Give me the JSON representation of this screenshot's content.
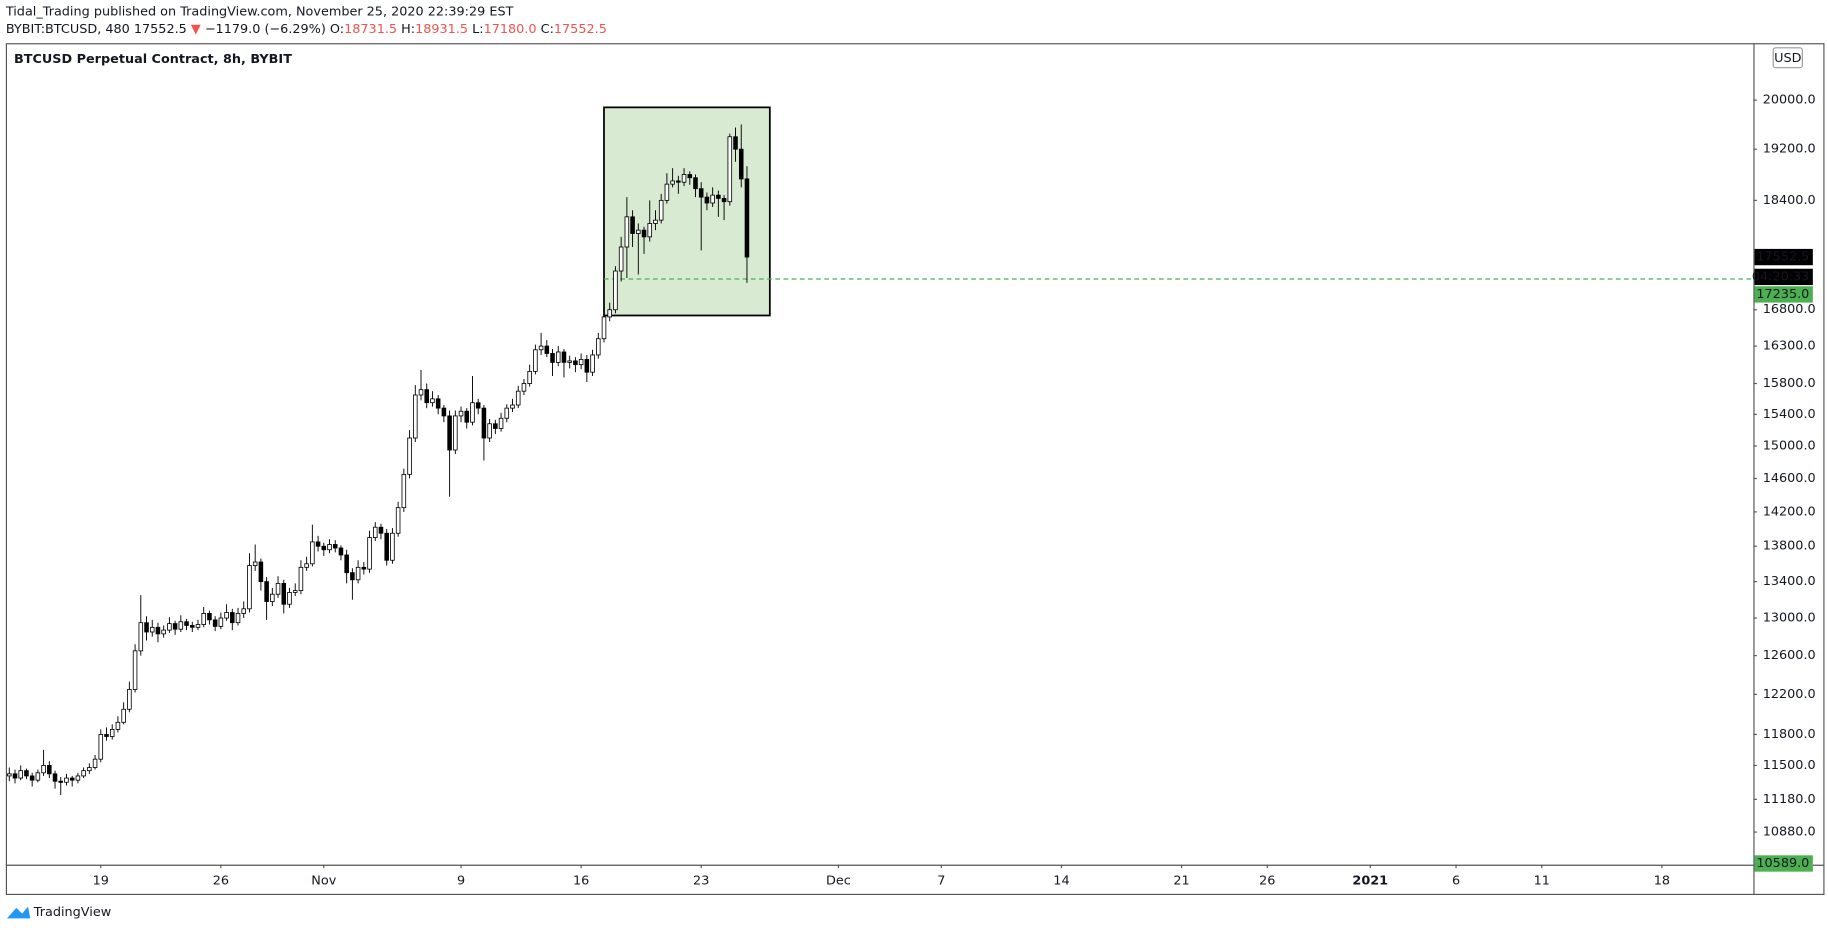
{
  "header": {
    "author": "Tidal_Trading",
    "published": "published on TradingView.com, November 25, 2020 22:39:29 EST",
    "symbol": "BYBIT:BTCUSD, 480",
    "last": "17552.5",
    "change": "−1179.0 (−6.29%)",
    "ohlc_labels": [
      "O:",
      "H:",
      "L:",
      "C:"
    ],
    "ohlc_values": [
      "18731.5",
      "18931.5",
      "17180.0",
      "17552.5"
    ]
  },
  "footer": {
    "brand": "TradingView"
  },
  "currency": "USD",
  "chart_data": {
    "type": "candlestick",
    "title": "BTCUSD Perpetual Contract, 8h, BYBIT",
    "log_scale": true,
    "grid": false,
    "up_color": "#ffffff",
    "down_color": "#000000",
    "wick_color": "#000000",
    "xlim": [
      -0.4,
      305
    ],
    "xticks": [
      {
        "value": 16,
        "label": "19"
      },
      {
        "value": 37,
        "label": "26"
      },
      {
        "value": 55,
        "label": "Nov"
      },
      {
        "value": 79,
        "label": "9"
      },
      {
        "value": 100,
        "label": "16"
      },
      {
        "value": 121,
        "label": "23"
      },
      {
        "value": 145,
        "label": "Dec"
      },
      {
        "value": 163,
        "label": "7"
      },
      {
        "value": 184,
        "label": "14"
      },
      {
        "value": 205,
        "label": "21"
      },
      {
        "value": 220,
        "label": "26"
      },
      {
        "value": 238,
        "label": "2021"
      },
      {
        "value": 253,
        "label": "6"
      },
      {
        "value": 268,
        "label": "11"
      },
      {
        "value": 289,
        "label": "18"
      }
    ],
    "ylim": [
      10589,
      20950
    ],
    "yticks": [
      {
        "value": 20000,
        "label": "20000.0"
      },
      {
        "value": 19200,
        "label": "19200.0"
      },
      {
        "value": 18400,
        "label": "18400.0"
      },
      {
        "value": 16800,
        "label": "16800.0"
      },
      {
        "value": 16300,
        "label": "16300.0"
      },
      {
        "value": 15800,
        "label": "15800.0"
      },
      {
        "value": 15400,
        "label": "15400.0"
      },
      {
        "value": 15000,
        "label": "15000.0"
      },
      {
        "value": 14600,
        "label": "14600.0"
      },
      {
        "value": 14200,
        "label": "14200.0"
      },
      {
        "value": 13800,
        "label": "13800.0"
      },
      {
        "value": 13400,
        "label": "13400.0"
      },
      {
        "value": 13000,
        "label": "13000.0"
      },
      {
        "value": 12600,
        "label": "12600.0"
      },
      {
        "value": 12200,
        "label": "12200.0"
      },
      {
        "value": 11800,
        "label": "11800.0"
      },
      {
        "value": 11500,
        "label": "11500.0"
      },
      {
        "value": 11180,
        "label": "11180.0"
      },
      {
        "value": 10880,
        "label": "10880.0"
      }
    ],
    "last_price": 17552.5,
    "countdown": "04:20:33",
    "line_price": {
      "value": 17235,
      "label": "17235.0",
      "color": "#4caf50"
    },
    "low_marker": {
      "value": 10589,
      "label": "10589.0",
      "color": "#4caf50"
    },
    "box": {
      "x": [
        104,
        133
      ],
      "y": [
        16720,
        19880
      ],
      "color": "#d9ead3"
    },
    "ohlc": [
      [
        11400,
        11480,
        11350,
        11420
      ],
      [
        11420,
        11460,
        11330,
        11380
      ],
      [
        11380,
        11500,
        11360,
        11450
      ],
      [
        11450,
        11470,
        11370,
        11400
      ],
      [
        11400,
        11430,
        11300,
        11360
      ],
      [
        11360,
        11460,
        11340,
        11430
      ],
      [
        11430,
        11650,
        11400,
        11500
      ],
      [
        11500,
        11540,
        11380,
        11420
      ],
      [
        11420,
        11450,
        11280,
        11350
      ],
      [
        11350,
        11390,
        11220,
        11340
      ],
      [
        11340,
        11420,
        11310,
        11380
      ],
      [
        11380,
        11400,
        11300,
        11360
      ],
      [
        11360,
        11430,
        11330,
        11400
      ],
      [
        11400,
        11480,
        11380,
        11450
      ],
      [
        11450,
        11520,
        11420,
        11480
      ],
      [
        11480,
        11600,
        11460,
        11560
      ],
      [
        11560,
        11850,
        11530,
        11800
      ],
      [
        11800,
        11870,
        11740,
        11780
      ],
      [
        11780,
        11900,
        11750,
        11850
      ],
      [
        11850,
        11980,
        11820,
        11920
      ],
      [
        11920,
        12120,
        11900,
        12050
      ],
      [
        12050,
        12330,
        12020,
        12250
      ],
      [
        12250,
        12720,
        12220,
        12650
      ],
      [
        12650,
        13250,
        12600,
        12950
      ],
      [
        12950,
        13020,
        12760,
        12850
      ],
      [
        12850,
        12980,
        12800,
        12900
      ],
      [
        12900,
        12950,
        12740,
        12830
      ],
      [
        12830,
        12920,
        12790,
        12870
      ],
      [
        12870,
        13010,
        12840,
        12940
      ],
      [
        12940,
        12970,
        12820,
        12880
      ],
      [
        12880,
        13030,
        12850,
        12960
      ],
      [
        12960,
        12990,
        12870,
        12920
      ],
      [
        12920,
        12960,
        12850,
        12900
      ],
      [
        12900,
        12980,
        12870,
        12930
      ],
      [
        12930,
        13120,
        12900,
        13050
      ],
      [
        13050,
        13080,
        12930,
        12980
      ],
      [
        12980,
        13020,
        12860,
        12910
      ],
      [
        12910,
        13060,
        12880,
        13000
      ],
      [
        13000,
        13150,
        12970,
        13060
      ],
      [
        13060,
        13100,
        12870,
        12950
      ],
      [
        12950,
        13110,
        12920,
        13050
      ],
      [
        13050,
        13180,
        13000,
        13100
      ],
      [
        13100,
        13720,
        13060,
        13580
      ],
      [
        13580,
        13820,
        13520,
        13620
      ],
      [
        13620,
        13660,
        13300,
        13400
      ],
      [
        13400,
        13450,
        12980,
        13180
      ],
      [
        13180,
        13330,
        13130,
        13260
      ],
      [
        13260,
        13460,
        13220,
        13380
      ],
      [
        13380,
        13420,
        13050,
        13150
      ],
      [
        13150,
        13330,
        13110,
        13280
      ],
      [
        13280,
        13380,
        13240,
        13300
      ],
      [
        13300,
        13640,
        13260,
        13560
      ],
      [
        13560,
        13680,
        13520,
        13600
      ],
      [
        13600,
        14050,
        13570,
        13850
      ],
      [
        13850,
        13920,
        13740,
        13800
      ],
      [
        13800,
        13840,
        13690,
        13760
      ],
      [
        13760,
        13880,
        13720,
        13820
      ],
      [
        13820,
        13870,
        13730,
        13780
      ],
      [
        13780,
        13810,
        13640,
        13700
      ],
      [
        13700,
        13760,
        13380,
        13500
      ],
      [
        13500,
        13550,
        13200,
        13420
      ],
      [
        13420,
        13640,
        13380,
        13560
      ],
      [
        13560,
        13620,
        13480,
        13540
      ],
      [
        13540,
        13980,
        13500,
        13900
      ],
      [
        13900,
        14080,
        13860,
        14020
      ],
      [
        14020,
        14060,
        13880,
        13950
      ],
      [
        13950,
        14000,
        13580,
        13640
      ],
      [
        13640,
        14010,
        13600,
        13950
      ],
      [
        13950,
        14320,
        13910,
        14250
      ],
      [
        14250,
        14720,
        14200,
        14650
      ],
      [
        14650,
        15200,
        14600,
        15100
      ],
      [
        15100,
        15780,
        15050,
        15650
      ],
      [
        15650,
        15980,
        15580,
        15720
      ],
      [
        15720,
        15800,
        15480,
        15550
      ],
      [
        15550,
        15700,
        15500,
        15600
      ],
      [
        15600,
        15650,
        15400,
        15480
      ],
      [
        15480,
        15520,
        15300,
        15380
      ],
      [
        15380,
        15450,
        14380,
        14950
      ],
      [
        14950,
        15450,
        14900,
        15380
      ],
      [
        15380,
        15500,
        15300,
        15440
      ],
      [
        15440,
        15480,
        15220,
        15300
      ],
      [
        15300,
        15900,
        15260,
        15550
      ],
      [
        15550,
        15600,
        15400,
        15480
      ],
      [
        15480,
        15520,
        14820,
        15100
      ],
      [
        15100,
        15340,
        15050,
        15280
      ],
      [
        15280,
        15330,
        15150,
        15220
      ],
      [
        15220,
        15420,
        15180,
        15350
      ],
      [
        15350,
        15530,
        15300,
        15480
      ],
      [
        15480,
        15600,
        15430,
        15520
      ],
      [
        15520,
        15770,
        15480,
        15700
      ],
      [
        15700,
        15860,
        15650,
        15800
      ],
      [
        15800,
        16050,
        15760,
        15960
      ],
      [
        15960,
        16320,
        15920,
        16250
      ],
      [
        16250,
        16480,
        16180,
        16300
      ],
      [
        16300,
        16380,
        16150,
        16200
      ],
      [
        16200,
        16260,
        15900,
        16080
      ],
      [
        16080,
        16300,
        16030,
        16220
      ],
      [
        16220,
        16260,
        15880,
        16080
      ],
      [
        16080,
        16170,
        16000,
        16100
      ],
      [
        16100,
        16150,
        15950,
        16050
      ],
      [
        16050,
        16200,
        15990,
        16120
      ],
      [
        16120,
        16180,
        15820,
        15950
      ],
      [
        15950,
        16250,
        15900,
        16180
      ],
      [
        16180,
        16480,
        16130,
        16400
      ],
      [
        16400,
        16780,
        16350,
        16700
      ],
      [
        16700,
        16900,
        16640,
        16800
      ],
      [
        16800,
        17420,
        16750,
        17350
      ],
      [
        17350,
        17850,
        17200,
        17700
      ],
      [
        17700,
        18450,
        17250,
        18150
      ],
      [
        18150,
        18250,
        17700,
        17900
      ],
      [
        17900,
        18050,
        17300,
        17950
      ],
      [
        17950,
        18000,
        17600,
        17850
      ],
      [
        17850,
        18400,
        17780,
        18050
      ],
      [
        18050,
        18250,
        17950,
        18100
      ],
      [
        18100,
        18500,
        18050,
        18400
      ],
      [
        18400,
        18820,
        18350,
        18650
      ],
      [
        18650,
        18900,
        18600,
        18700
      ],
      [
        18700,
        18780,
        18500,
        18680
      ],
      [
        18680,
        18900,
        18620,
        18800
      ],
      [
        18800,
        18850,
        18640,
        18750
      ],
      [
        18750,
        18800,
        18450,
        18580
      ],
      [
        18580,
        18680,
        17650,
        18450
      ],
      [
        18450,
        18520,
        18250,
        18360
      ],
      [
        18360,
        18600,
        18300,
        18480
      ],
      [
        18480,
        18550,
        18150,
        18430
      ],
      [
        18430,
        18480,
        18100,
        18380
      ],
      [
        18380,
        19450,
        18320,
        19400
      ],
      [
        19400,
        19550,
        19000,
        19200
      ],
      [
        19200,
        19600,
        18600,
        18731.5
      ],
      [
        18731.5,
        18931.5,
        17180.0,
        17552.5
      ]
    ]
  }
}
